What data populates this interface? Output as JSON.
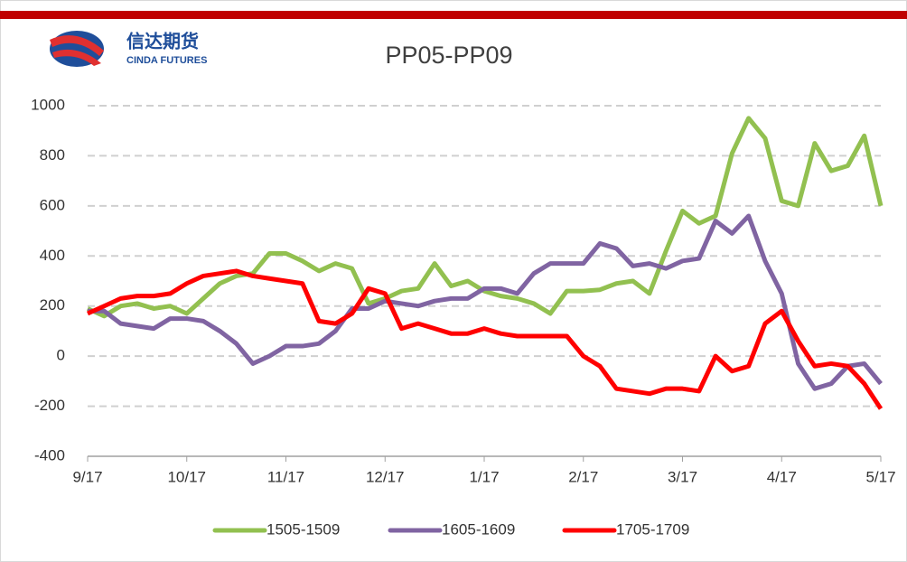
{
  "header": {
    "logo_name": "信达期货",
    "logo_subname": "CINDA FUTURES"
  },
  "chart_data": {
    "type": "line",
    "title": "PP05-PP09",
    "categories": [
      "9/17",
      null,
      null,
      null,
      null,
      null,
      "10/17",
      null,
      null,
      null,
      null,
      null,
      "11/17",
      null,
      null,
      null,
      null,
      null,
      "12/17",
      null,
      null,
      null,
      null,
      null,
      "1/17",
      null,
      null,
      null,
      null,
      null,
      "2/17",
      null,
      null,
      null,
      null,
      null,
      "3/17",
      null,
      null,
      null,
      null,
      null,
      "4/17",
      null,
      null,
      null,
      null,
      null,
      "5/17"
    ],
    "series": [
      {
        "name": "1505-1509",
        "color": "#92c050",
        "values": [
          190,
          160,
          200,
          210,
          190,
          200,
          170,
          230,
          290,
          320,
          330,
          410,
          410,
          380,
          340,
          370,
          350,
          210,
          230,
          260,
          270,
          370,
          280,
          300,
          260,
          240,
          230,
          210,
          170,
          260,
          260,
          265,
          290,
          300,
          250,
          420,
          580,
          530,
          560,
          810,
          950,
          870,
          620,
          600,
          850,
          740,
          760,
          880,
          600
        ]
      },
      {
        "name": "1605-1609",
        "color": "#8064a2",
        "values": [
          180,
          180,
          130,
          120,
          110,
          150,
          150,
          140,
          100,
          50,
          -30,
          0,
          40,
          40,
          50,
          100,
          190,
          190,
          220,
          210,
          200,
          220,
          230,
          230,
          270,
          270,
          250,
          330,
          370,
          370,
          370,
          450,
          430,
          360,
          370,
          350,
          380,
          390,
          540,
          490,
          560,
          380,
          250,
          -30,
          -130,
          -110,
          -40,
          -30,
          -110
        ]
      },
      {
        "name": "1705-1709",
        "color": "#ff0000",
        "values": [
          170,
          200,
          230,
          240,
          240,
          250,
          290,
          320,
          330,
          340,
          320,
          310,
          300,
          290,
          140,
          130,
          170,
          270,
          250,
          110,
          130,
          110,
          90,
          90,
          110,
          90,
          80,
          80,
          80,
          80,
          0,
          -40,
          -130,
          -140,
          -150,
          -130,
          -130,
          -140,
          0,
          -60,
          -40,
          130,
          180,
          60,
          -40,
          -30,
          -40,
          -110,
          -210
        ]
      }
    ],
    "ylim": [
      -400,
      1000
    ],
    "yticks": [
      -400,
      -200,
      0,
      200,
      400,
      600,
      800,
      1000
    ],
    "grid": true,
    "legend": "bottom"
  }
}
